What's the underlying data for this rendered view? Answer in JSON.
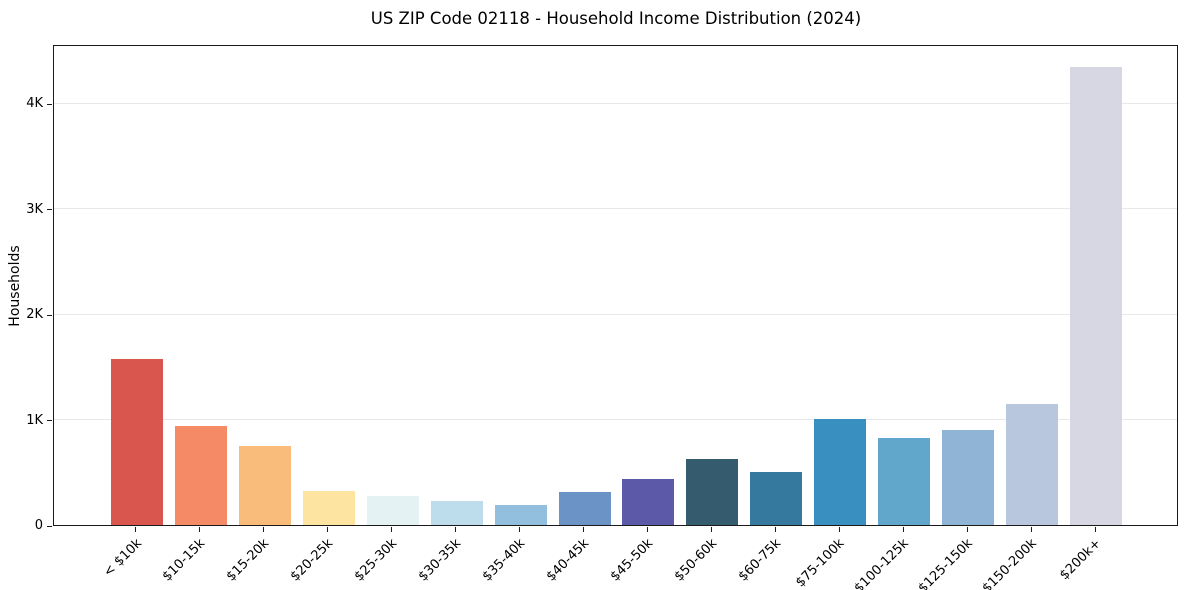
{
  "chart_data": {
    "type": "bar",
    "title": "US ZIP Code 02118 - Household Income Distribution (2024)",
    "xlabel": "",
    "ylabel": "Households",
    "categories": [
      "< $10k",
      "$10-15k",
      "$15-20k",
      "$20-25k",
      "$25-30k",
      "$30-35k",
      "$35-40k",
      "$40-45k",
      "$45-50k",
      "$50-60k",
      "$60-75k",
      "$75-100k",
      "$100-125k",
      "$125-150k",
      "$150-200k",
      "$200k+"
    ],
    "values": [
      1575,
      935,
      745,
      320,
      275,
      230,
      190,
      315,
      435,
      630,
      500,
      1005,
      825,
      905,
      1145,
      4345
    ],
    "bar_colors": [
      "#d8564e",
      "#f58a67",
      "#fabc7b",
      "#fde4a0",
      "#e5f2f4",
      "#bddded",
      "#93bfdf",
      "#6b93c6",
      "#5c59a9",
      "#345c6e",
      "#35799f",
      "#3990c0",
      "#61a7cb",
      "#90b4d5",
      "#b8c7de",
      "#d6d7e3"
    ],
    "ytick_values": [
      0,
      1000,
      2000,
      3000,
      4000
    ],
    "ytick_labels": [
      "0",
      "1K",
      "2K",
      "3K",
      "4K"
    ],
    "ylim": [
      0,
      4562
    ],
    "grid": "horizontal",
    "legend": "none"
  },
  "colors": {
    "background": "#ffffff",
    "spine": "#1a1a1a",
    "gridline": "#e7e7ec",
    "text": "#000000"
  }
}
